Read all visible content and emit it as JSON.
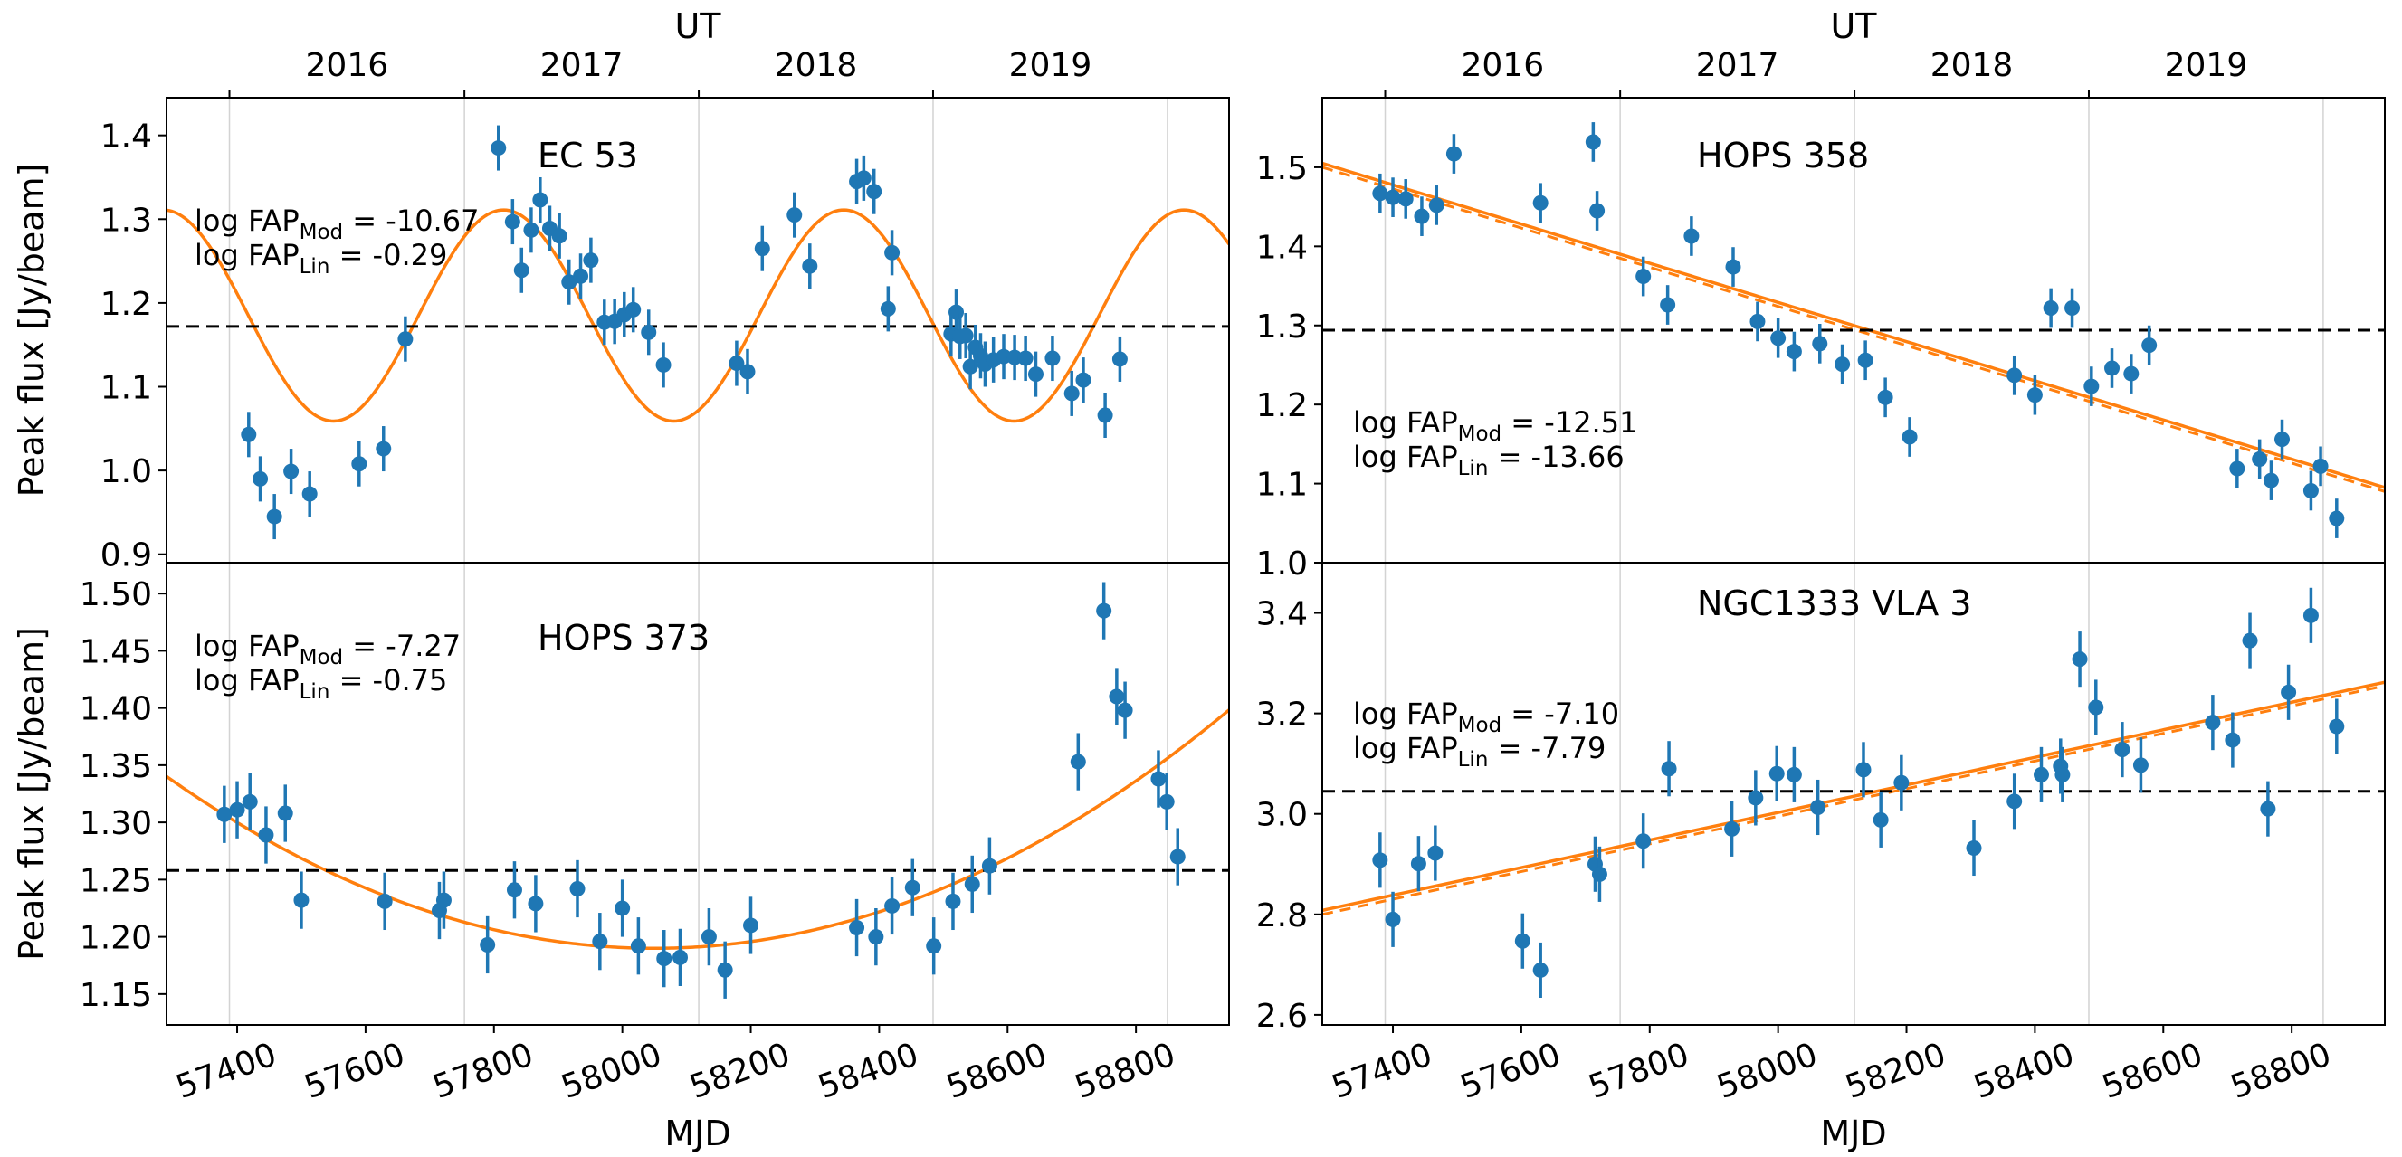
{
  "chart_data": [
    {
      "type": "scatter",
      "title": "EC 53",
      "ylabel": "Peak flux [Jy/beam]",
      "xlabel": "",
      "top_axis_label": "UT",
      "top_ticks": [
        {
          "label": "2016",
          "mjd": 57388
        },
        {
          "label": "2017",
          "mjd": 57754
        },
        {
          "label": "2018",
          "mjd": 58119
        },
        {
          "label": "2019",
          "mjd": 58484
        }
      ],
      "year_boundaries": [
        57388,
        57754,
        58119,
        58484,
        58849
      ],
      "xlim": [
        57290,
        58945
      ],
      "ylim": [
        0.89,
        1.445
      ],
      "yticks": [
        0.9,
        1.0,
        1.1,
        1.2,
        1.3,
        1.4
      ],
      "ytick_format": 1,
      "xticks": [],
      "mean_flux": 1.172,
      "fap": {
        "mod_prefix": "log FAP",
        "mod_sub": "Mod",
        "mod_value": " = -10.67",
        "lin_prefix": "log FAP",
        "lin_sub": "Lin",
        "lin_value": " = -0.29"
      },
      "model": {
        "kind": "sine",
        "mean": 1.185,
        "amp": 0.126,
        "period": 530,
        "phase_peak_mjd": 57815
      },
      "points": [
        {
          "x": 57418,
          "y": 1.043,
          "err": 0.027
        },
        {
          "x": 57436,
          "y": 0.99,
          "err": 0.027
        },
        {
          "x": 57458,
          "y": 0.945,
          "err": 0.027
        },
        {
          "x": 57484,
          "y": 0.999,
          "err": 0.027
        },
        {
          "x": 57513,
          "y": 0.972,
          "err": 0.027
        },
        {
          "x": 57590,
          "y": 1.008,
          "err": 0.027
        },
        {
          "x": 57628,
          "y": 1.026,
          "err": 0.027
        },
        {
          "x": 57662,
          "y": 1.157,
          "err": 0.027
        },
        {
          "x": 57807,
          "y": 1.385,
          "err": 0.027
        },
        {
          "x": 57829,
          "y": 1.297,
          "err": 0.027
        },
        {
          "x": 57843,
          "y": 1.239,
          "err": 0.027
        },
        {
          "x": 57858,
          "y": 1.287,
          "err": 0.027
        },
        {
          "x": 57872,
          "y": 1.323,
          "err": 0.027
        },
        {
          "x": 57887,
          "y": 1.289,
          "err": 0.027
        },
        {
          "x": 57902,
          "y": 1.28,
          "err": 0.027
        },
        {
          "x": 57917,
          "y": 1.225,
          "err": 0.027
        },
        {
          "x": 57935,
          "y": 1.232,
          "err": 0.027
        },
        {
          "x": 57951,
          "y": 1.251,
          "err": 0.027
        },
        {
          "x": 57972,
          "y": 1.177,
          "err": 0.027
        },
        {
          "x": 57988,
          "y": 1.178,
          "err": 0.027
        },
        {
          "x": 58003,
          "y": 1.186,
          "err": 0.027
        },
        {
          "x": 58017,
          "y": 1.192,
          "err": 0.027
        },
        {
          "x": 58041,
          "y": 1.165,
          "err": 0.027
        },
        {
          "x": 58064,
          "y": 1.126,
          "err": 0.027
        },
        {
          "x": 58178,
          "y": 1.128,
          "err": 0.027
        },
        {
          "x": 58195,
          "y": 1.118,
          "err": 0.027
        },
        {
          "x": 58218,
          "y": 1.265,
          "err": 0.027
        },
        {
          "x": 58268,
          "y": 1.305,
          "err": 0.027
        },
        {
          "x": 58292,
          "y": 1.244,
          "err": 0.027
        },
        {
          "x": 58365,
          "y": 1.345,
          "err": 0.027
        },
        {
          "x": 58376,
          "y": 1.349,
          "err": 0.027
        },
        {
          "x": 58392,
          "y": 1.333,
          "err": 0.027
        },
        {
          "x": 58414,
          "y": 1.193,
          "err": 0.027
        },
        {
          "x": 58420,
          "y": 1.26,
          "err": 0.027
        },
        {
          "x": 58512,
          "y": 1.163,
          "err": 0.027
        },
        {
          "x": 58520,
          "y": 1.189,
          "err": 0.027
        },
        {
          "x": 58526,
          "y": 1.16,
          "err": 0.027
        },
        {
          "x": 58535,
          "y": 1.161,
          "err": 0.027
        },
        {
          "x": 58542,
          "y": 1.124,
          "err": 0.027
        },
        {
          "x": 58550,
          "y": 1.147,
          "err": 0.027
        },
        {
          "x": 58558,
          "y": 1.137,
          "err": 0.027
        },
        {
          "x": 58565,
          "y": 1.127,
          "err": 0.027
        },
        {
          "x": 58578,
          "y": 1.132,
          "err": 0.027
        },
        {
          "x": 58594,
          "y": 1.136,
          "err": 0.027
        },
        {
          "x": 58611,
          "y": 1.135,
          "err": 0.027
        },
        {
          "x": 58628,
          "y": 1.134,
          "err": 0.027
        },
        {
          "x": 58644,
          "y": 1.115,
          "err": 0.027
        },
        {
          "x": 58670,
          "y": 1.134,
          "err": 0.027
        },
        {
          "x": 58700,
          "y": 1.092,
          "err": 0.027
        },
        {
          "x": 58718,
          "y": 1.108,
          "err": 0.027
        },
        {
          "x": 58752,
          "y": 1.066,
          "err": 0.027
        },
        {
          "x": 58775,
          "y": 1.133,
          "err": 0.027
        }
      ]
    },
    {
      "type": "scatter",
      "title": "HOPS 358",
      "ylabel": "",
      "xlabel": "",
      "top_axis_label": "UT",
      "top_ticks": [
        {
          "label": "2016",
          "mjd": 57388
        },
        {
          "label": "2017",
          "mjd": 57754
        },
        {
          "label": "2018",
          "mjd": 58119
        },
        {
          "label": "2019",
          "mjd": 58484
        }
      ],
      "year_boundaries": [
        57388,
        57754,
        58119,
        58484,
        58849
      ],
      "xlim": [
        57290,
        58945
      ],
      "ylim": [
        1.0,
        1.588
      ],
      "yticks": [
        1.0,
        1.1,
        1.2,
        1.3,
        1.4,
        1.5
      ],
      "ytick_format": 1,
      "xticks": [],
      "mean_flux": 1.294,
      "fap": {
        "mod_prefix": "log FAP",
        "mod_sub": "Mod",
        "mod_value": " = -12.51",
        "lin_prefix": "log FAP",
        "lin_sub": "Lin",
        "lin_value": " = -13.66"
      },
      "model": {
        "kind": "linear",
        "x0": 57290,
        "y0": 1.505,
        "x1": 58945,
        "y1": 1.095
      },
      "model_dashed": {
        "kind": "linear",
        "x0": 57290,
        "y0": 1.5,
        "x1": 58945,
        "y1": 1.09
      },
      "points": [
        {
          "x": 57380,
          "y": 1.467,
          "err": 0.025
        },
        {
          "x": 57400,
          "y": 1.462,
          "err": 0.025
        },
        {
          "x": 57420,
          "y": 1.46,
          "err": 0.025
        },
        {
          "x": 57445,
          "y": 1.438,
          "err": 0.025
        },
        {
          "x": 57468,
          "y": 1.452,
          "err": 0.025
        },
        {
          "x": 57495,
          "y": 1.517,
          "err": 0.025
        },
        {
          "x": 57630,
          "y": 1.455,
          "err": 0.025
        },
        {
          "x": 57712,
          "y": 1.532,
          "err": 0.025
        },
        {
          "x": 57718,
          "y": 1.445,
          "err": 0.025
        },
        {
          "x": 57790,
          "y": 1.362,
          "err": 0.025
        },
        {
          "x": 57828,
          "y": 1.326,
          "err": 0.025
        },
        {
          "x": 57865,
          "y": 1.413,
          "err": 0.025
        },
        {
          "x": 57930,
          "y": 1.374,
          "err": 0.025
        },
        {
          "x": 57968,
          "y": 1.305,
          "err": 0.025
        },
        {
          "x": 58000,
          "y": 1.284,
          "err": 0.025
        },
        {
          "x": 58025,
          "y": 1.267,
          "err": 0.025
        },
        {
          "x": 58065,
          "y": 1.277,
          "err": 0.025
        },
        {
          "x": 58100,
          "y": 1.251,
          "err": 0.025
        },
        {
          "x": 58136,
          "y": 1.256,
          "err": 0.025
        },
        {
          "x": 58167,
          "y": 1.209,
          "err": 0.025
        },
        {
          "x": 58205,
          "y": 1.159,
          "err": 0.025
        },
        {
          "x": 58368,
          "y": 1.237,
          "err": 0.025
        },
        {
          "x": 58400,
          "y": 1.212,
          "err": 0.025
        },
        {
          "x": 58425,
          "y": 1.322,
          "err": 0.025
        },
        {
          "x": 58458,
          "y": 1.322,
          "err": 0.025
        },
        {
          "x": 58488,
          "y": 1.223,
          "err": 0.025
        },
        {
          "x": 58520,
          "y": 1.246,
          "err": 0.025
        },
        {
          "x": 58550,
          "y": 1.239,
          "err": 0.025
        },
        {
          "x": 58578,
          "y": 1.275,
          "err": 0.025
        },
        {
          "x": 58715,
          "y": 1.119,
          "err": 0.025
        },
        {
          "x": 58750,
          "y": 1.131,
          "err": 0.025
        },
        {
          "x": 58768,
          "y": 1.104,
          "err": 0.025
        },
        {
          "x": 58785,
          "y": 1.156,
          "err": 0.025
        },
        {
          "x": 58830,
          "y": 1.091,
          "err": 0.025
        },
        {
          "x": 58845,
          "y": 1.122,
          "err": 0.025
        },
        {
          "x": 58870,
          "y": 1.056,
          "err": 0.025
        }
      ]
    },
    {
      "type": "scatter",
      "title": "HOPS 373",
      "ylabel": "Peak flux [Jy/beam]",
      "xlabel": "MJD",
      "top_axis_label": "",
      "top_ticks": [],
      "year_boundaries": [
        57388,
        57754,
        58119,
        58484,
        58849
      ],
      "xlim": [
        57290,
        58945
      ],
      "ylim": [
        1.123,
        1.527
      ],
      "yticks": [
        1.15,
        1.2,
        1.25,
        1.3,
        1.35,
        1.4,
        1.45,
        1.5
      ],
      "ytick_format": 2,
      "xticks": [
        57400,
        57600,
        57800,
        58000,
        58200,
        58400,
        58600,
        58800
      ],
      "mean_flux": 1.258,
      "fap": {
        "mod_prefix": "log FAP",
        "mod_sub": "Mod",
        "mod_value": " = -7.27",
        "lin_prefix": "log FAP",
        "lin_sub": "Lin",
        "lin_value": " = -0.75"
      },
      "model": {
        "kind": "quadratic",
        "vertex_x": 58050,
        "vertex_y": 1.19,
        "a_coef": 2.6e-07
      },
      "points": [
        {
          "x": 57380,
          "y": 1.307,
          "err": 0.025
        },
        {
          "x": 57400,
          "y": 1.311,
          "err": 0.025
        },
        {
          "x": 57420,
          "y": 1.318,
          "err": 0.025
        },
        {
          "x": 57445,
          "y": 1.289,
          "err": 0.025
        },
        {
          "x": 57475,
          "y": 1.308,
          "err": 0.025
        },
        {
          "x": 57500,
          "y": 1.232,
          "err": 0.025
        },
        {
          "x": 57630,
          "y": 1.231,
          "err": 0.025
        },
        {
          "x": 57715,
          "y": 1.223,
          "err": 0.025
        },
        {
          "x": 57722,
          "y": 1.232,
          "err": 0.025
        },
        {
          "x": 57790,
          "y": 1.193,
          "err": 0.025
        },
        {
          "x": 57832,
          "y": 1.241,
          "err": 0.025
        },
        {
          "x": 57865,
          "y": 1.229,
          "err": 0.025
        },
        {
          "x": 57930,
          "y": 1.242,
          "err": 0.025
        },
        {
          "x": 57965,
          "y": 1.196,
          "err": 0.025
        },
        {
          "x": 58000,
          "y": 1.225,
          "err": 0.025
        },
        {
          "x": 58025,
          "y": 1.192,
          "err": 0.025
        },
        {
          "x": 58065,
          "y": 1.181,
          "err": 0.025
        },
        {
          "x": 58090,
          "y": 1.182,
          "err": 0.025
        },
        {
          "x": 58135,
          "y": 1.2,
          "err": 0.025
        },
        {
          "x": 58160,
          "y": 1.171,
          "err": 0.025
        },
        {
          "x": 58200,
          "y": 1.21,
          "err": 0.025
        },
        {
          "x": 58365,
          "y": 1.208,
          "err": 0.025
        },
        {
          "x": 58395,
          "y": 1.2,
          "err": 0.025
        },
        {
          "x": 58420,
          "y": 1.227,
          "err": 0.025
        },
        {
          "x": 58452,
          "y": 1.243,
          "err": 0.025
        },
        {
          "x": 58485,
          "y": 1.192,
          "err": 0.025
        },
        {
          "x": 58515,
          "y": 1.231,
          "err": 0.025
        },
        {
          "x": 58545,
          "y": 1.246,
          "err": 0.025
        },
        {
          "x": 58572,
          "y": 1.262,
          "err": 0.025
        },
        {
          "x": 58710,
          "y": 1.353,
          "err": 0.025
        },
        {
          "x": 58750,
          "y": 1.485,
          "err": 0.025
        },
        {
          "x": 58770,
          "y": 1.41,
          "err": 0.025
        },
        {
          "x": 58783,
          "y": 1.398,
          "err": 0.025
        },
        {
          "x": 58835,
          "y": 1.338,
          "err": 0.025
        },
        {
          "x": 58848,
          "y": 1.318,
          "err": 0.025
        },
        {
          "x": 58865,
          "y": 1.27,
          "err": 0.025
        }
      ]
    },
    {
      "type": "scatter",
      "title": "NGC1333 VLA 3",
      "ylabel": "",
      "xlabel": "MJD",
      "top_axis_label": "",
      "top_ticks": [],
      "year_boundaries": [
        57388,
        57754,
        58119,
        58484,
        58849
      ],
      "xlim": [
        57290,
        58945
      ],
      "ylim": [
        2.58,
        3.5
      ],
      "yticks": [
        2.6,
        2.8,
        3.0,
        3.2,
        3.4
      ],
      "ytick_format": 1,
      "xticks": [
        57400,
        57600,
        57800,
        58000,
        58200,
        58400,
        58600,
        58800
      ],
      "mean_flux": 3.045,
      "fap": {
        "mod_prefix": "log FAP",
        "mod_sub": "Mod",
        "mod_value": " = -7.10",
        "lin_prefix": "log FAP",
        "lin_sub": "Lin",
        "lin_value": " = -7.79"
      },
      "model": {
        "kind": "linear",
        "x0": 57290,
        "y0": 2.808,
        "x1": 58945,
        "y1": 3.262
      },
      "model_dashed": {
        "kind": "linear",
        "x0": 57290,
        "y0": 2.8,
        "x1": 58945,
        "y1": 3.255
      },
      "points": [
        {
          "x": 57380,
          "y": 2.908,
          "err": 0.055
        },
        {
          "x": 57400,
          "y": 2.79,
          "err": 0.055
        },
        {
          "x": 57440,
          "y": 2.901,
          "err": 0.055
        },
        {
          "x": 57466,
          "y": 2.922,
          "err": 0.055
        },
        {
          "x": 57602,
          "y": 2.747,
          "err": 0.055
        },
        {
          "x": 57630,
          "y": 2.689,
          "err": 0.055
        },
        {
          "x": 57715,
          "y": 2.9,
          "err": 0.055
        },
        {
          "x": 57722,
          "y": 2.88,
          "err": 0.055
        },
        {
          "x": 57790,
          "y": 2.946,
          "err": 0.055
        },
        {
          "x": 57830,
          "y": 3.09,
          "err": 0.055
        },
        {
          "x": 57928,
          "y": 2.97,
          "err": 0.055
        },
        {
          "x": 57965,
          "y": 3.032,
          "err": 0.055
        },
        {
          "x": 57998,
          "y": 3.08,
          "err": 0.055
        },
        {
          "x": 58025,
          "y": 3.078,
          "err": 0.055
        },
        {
          "x": 58062,
          "y": 3.013,
          "err": 0.055
        },
        {
          "x": 58133,
          "y": 3.088,
          "err": 0.055
        },
        {
          "x": 58160,
          "y": 2.988,
          "err": 0.055
        },
        {
          "x": 58192,
          "y": 3.062,
          "err": 0.055
        },
        {
          "x": 58305,
          "y": 2.932,
          "err": 0.055
        },
        {
          "x": 58368,
          "y": 3.025,
          "err": 0.055
        },
        {
          "x": 58410,
          "y": 3.078,
          "err": 0.055
        },
        {
          "x": 58440,
          "y": 3.095,
          "err": 0.055
        },
        {
          "x": 58443,
          "y": 3.078,
          "err": 0.055
        },
        {
          "x": 58470,
          "y": 3.308,
          "err": 0.055
        },
        {
          "x": 58495,
          "y": 3.212,
          "err": 0.055
        },
        {
          "x": 58536,
          "y": 3.128,
          "err": 0.055
        },
        {
          "x": 58565,
          "y": 3.097,
          "err": 0.055
        },
        {
          "x": 58677,
          "y": 3.182,
          "err": 0.055
        },
        {
          "x": 58708,
          "y": 3.147,
          "err": 0.055
        },
        {
          "x": 58735,
          "y": 3.345,
          "err": 0.055
        },
        {
          "x": 58763,
          "y": 3.01,
          "err": 0.055
        },
        {
          "x": 58795,
          "y": 3.242,
          "err": 0.055
        },
        {
          "x": 58830,
          "y": 3.395,
          "err": 0.055
        },
        {
          "x": 58870,
          "y": 3.174,
          "err": 0.055
        }
      ]
    }
  ],
  "style": {
    "point_color": "#1f77b4",
    "model_color": "#ff7f0e",
    "mean_line_color": "#000000",
    "grid_color": "#d3d3d3"
  }
}
